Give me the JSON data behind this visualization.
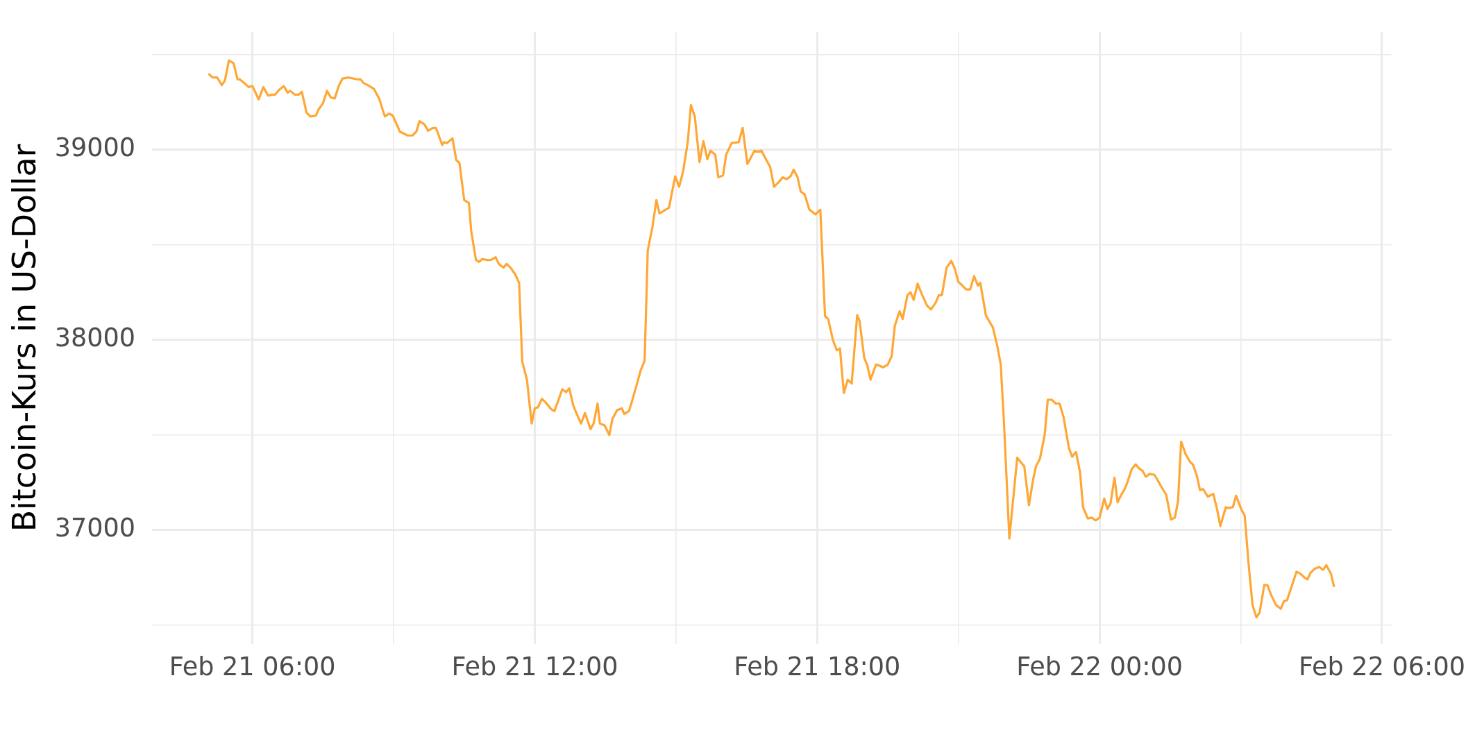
{
  "chart_data": {
    "type": "line",
    "ylabel": "Bitcoin-Kurs in US-Dollar",
    "color": "#ffa735",
    "grid": true,
    "xlim": [
      "--02-21T03:52",
      "--02-22T06:12"
    ],
    "xticks": [
      {
        "value": "--02-21T06:00",
        "label": "Feb 21 06:00"
      },
      {
        "value": "--02-21T09:00",
        "label": null
      },
      {
        "value": "--02-21T12:00",
        "label": "Feb 21 12:00"
      },
      {
        "value": "--02-21T15:00",
        "label": null
      },
      {
        "value": "--02-21T18:00",
        "label": "Feb 21 18:00"
      },
      {
        "value": "--02-21T21:00",
        "label": null
      },
      {
        "value": "--02-22T00:00",
        "label": "Feb 22 00:00"
      },
      {
        "value": "--02-22T03:00",
        "label": null
      },
      {
        "value": "--02-22T06:00",
        "label": "Feb 22 06:00"
      }
    ],
    "ylim": [
      36400,
      39620
    ],
    "yticks": [
      {
        "value": 36500,
        "label": null
      },
      37000,
      {
        "value": 37500,
        "label": null
      },
      38000,
      {
        "value": 38500,
        "label": null
      },
      39000,
      {
        "value": 39500,
        "label": null
      }
    ],
    "x": [
      "--02-21T05:04",
      "--02-21T05:09",
      "--02-21T05:15",
      "--02-21T05:21",
      "--02-21T05:25",
      "--02-21T05:30",
      "--02-21T05:36",
      "--02-21T05:41",
      "--02-21T05:44",
      "--02-21T05:50",
      "--02-21T05:55",
      "--02-21T06:00",
      "--02-21T06:08",
      "--02-21T06:14",
      "--02-21T06:20",
      "--02-21T06:25",
      "--02-21T06:29",
      "--02-21T06:34",
      "--02-21T06:40",
      "--02-21T06:45",
      "--02-21T06:48",
      "--02-21T06:54",
      "--02-21T06:59",
      "--02-21T07:03",
      "--02-21T07:09",
      "--02-21T07:14",
      "--02-21T07:21",
      "--02-21T07:24",
      "--02-21T07:30",
      "--02-21T07:35",
      "--02-21T07:40",
      "--02-21T07:45",
      "--02-21T07:50",
      "--02-21T07:55",
      "--02-21T08:03",
      "--02-21T08:14",
      "--02-21T08:18",
      "--02-21T08:22",
      "--02-21T08:27",
      "--02-21T08:35",
      "--02-21T08:42",
      "--02-21T08:46",
      "--02-21T08:49",
      "--02-21T08:54",
      "--02-21T08:59",
      "--02-21T09:08",
      "--02-21T09:18",
      "--02-21T09:24",
      "--02-21T09:29",
      "--02-21T09:33",
      "--02-21T09:39",
      "--02-21T09:44",
      "--02-21T09:50",
      "--02-21T09:54",
      "--02-21T10:02",
      "--02-21T10:04",
      "--02-21T10:08",
      "--02-21T10:15",
      "--02-21T10:20",
      "--02-21T10:24",
      "--02-21T10:30",
      "--02-21T10:36",
      "--02-21T10:39",
      "--02-21T10:45",
      "--02-21T10:49",
      "--02-21T10:53",
      "--02-21T10:59",
      "--02-21T11:04",
      "--02-21T11:10",
      "--02-21T11:14",
      "--02-21T11:20",
      "--02-21T11:24",
      "--02-21T11:29",
      "--02-21T11:35",
      "--02-21T11:40",
      "--02-21T11:44",
      "--02-21T11:50",
      "--02-21T11:56",
      "--02-21T12:00",
      "--02-21T12:04",
      "--02-21T12:09",
      "--02-21T12:14",
      "--02-21T12:21",
      "--02-21T12:25",
      "--02-21T12:35",
      "--02-21T12:40",
      "--02-21T12:44",
      "--02-21T12:49",
      "--02-21T12:54",
      "--02-21T12:59",
      "--02-21T13:04",
      "--02-21T13:11",
      "--02-21T13:15",
      "--02-21T13:20",
      "--02-21T13:23",
      "--02-21T13:29",
      "--02-21T13:35",
      "--02-21T13:39",
      "--02-21T13:45",
      "--02-21T13:51",
      "--02-21T13:54",
      "--02-21T14:00",
      "--02-21T14:03",
      "--02-21T14:10",
      "--02-21T14:15",
      "--02-21T14:20",
      "--02-21T14:24",
      "--02-21T14:30",
      "--02-21T14:35",
      "--02-21T14:39",
      "--02-21T14:45",
      "--02-21T14:51",
      "--02-21T14:59",
      "--02-21T15:04",
      "--02-21T15:09",
      "--02-21T15:15",
      "--02-21T15:19",
      "--02-21T15:24",
      "--02-21T15:30",
      "--02-21T15:35",
      "--02-21T15:40",
      "--02-21T15:44",
      "--02-21T15:50",
      "--02-21T15:54",
      "--02-21T16:00",
      "--02-21T16:04",
      "--02-21T16:11",
      "--02-21T16:20",
      "--02-21T16:25",
      "--02-21T16:31",
      "--02-21T16:33",
      "--02-21T16:40",
      "--02-21T16:44",
      "--02-21T16:49",
      "--02-21T16:56",
      "--02-21T17:00",
      "--02-21T17:05",
      "--02-21T17:11",
      "--02-21T17:16",
      "--02-21T17:21",
      "--02-21T17:26",
      "--02-21T17:30",
      "--02-21T17:35",
      "--02-21T17:39",
      "--02-21T17:44",
      "--02-21T17:50",
      "--02-21T17:58",
      "--02-21T18:04",
      "--02-21T18:10",
      "--02-21T18:14",
      "--02-21T18:20",
      "--02-21T18:25",
      "--02-21T18:29",
      "--02-21T18:34",
      "--02-21T18:39",
      "--02-21T18:44",
      "--02-21T18:51",
      "--02-21T18:54",
      "--02-21T19:00",
      "--02-21T19:04",
      "--02-21T19:08",
      "--02-21T19:15",
      "--02-21T19:19",
      "--02-21T19:24",
      "--02-21T19:30",
      "--02-21T19:35",
      "--02-21T19:39",
      "--02-21T19:45",
      "--02-21T19:49",
      "--02-21T19:55",
      "--02-21T19:59",
      "--02-21T20:03",
      "--02-21T20:08",
      "--02-21T20:14",
      "--02-21T20:20",
      "--02-21T20:25",
      "--02-21T20:31",
      "--02-21T20:35",
      "--02-21T20:39",
      "--02-21T20:45",
      "--02-21T20:51",
      "--02-21T20:55",
      "--02-21T21:00",
      "--02-21T21:04",
      "--02-21T21:10",
      "--02-21T21:15",
      "--02-21T21:20",
      "--02-21T21:25",
      "--02-21T21:28",
      "--02-21T21:35",
      "--02-21T21:39",
      "--02-21T21:44",
      "--02-21T21:50",
      "--02-21T21:54",
      "--02-21T21:58",
      "--02-21T22:05",
      "--02-21T22:09",
      "--02-21T22:15",
      "--02-21T22:20",
      "--02-21T22:24",
      "--02-21T22:30",
      "--02-21T22:35",
      "--02-21T22:39",
      "--02-21T22:44",
      "--02-21T22:50",
      "--02-21T22:54",
      "--02-21T22:59",
      "--02-21T23:04",
      "--02-21T23:09",
      "--02-21T23:14",
      "--02-21T23:21",
      "--02-21T23:25",
      "--02-21T23:30",
      "--02-21T23:35",
      "--02-21T23:39",
      "--02-21T23:45",
      "--02-21T23:50",
      "--02-21T23:55",
      "--02-22T00:00",
      "--02-22T00:06",
      "--02-22T00:10",
      "--02-22T00:14",
      "--02-22T00:19",
      "--02-22T00:23",
      "--02-22T00:27",
      "--02-22T00:32",
      "--02-22T00:35",
      "--02-22T00:41",
      "--02-22T00:46",
      "--02-22T00:50",
      "--02-22T00:55",
      "--02-22T00:59",
      "--02-22T01:04",
      "--02-22T01:10",
      "--02-22T01:15",
      "--02-22T01:19",
      "--02-22T01:25",
      "--02-22T01:31",
      "--02-22T01:36",
      "--02-22T01:40",
      "--02-22T01:44",
      "--02-22T01:50",
      "--02-22T01:56",
      "--02-22T01:59",
      "--02-22T02:04",
      "--02-22T02:08",
      "--02-22T02:12",
      "--02-22T02:18",
      "--02-22T02:25",
      "--02-22T02:30",
      "--02-22T02:34",
      "--02-22T02:41",
      "--02-22T02:44",
      "--02-22T02:50",
      "--02-22T02:54",
      "--02-22T03:01",
      "--02-22T03:05",
      "--02-22T03:10",
      "--02-22T03:15",
      "--02-22T03:20",
      "--02-22T03:24",
      "--02-22T03:30",
      "--02-22T03:34",
      "--02-22T03:39",
      "--02-22T03:45",
      "--02-22T03:51",
      "--02-22T03:55",
      "--02-22T03:59",
      "--02-22T04:05",
      "--02-22T04:11",
      "--02-22T04:16",
      "--02-22T04:21",
      "--02-22T04:25",
      "--02-22T04:29",
      "--02-22T04:34",
      "--02-22T04:40",
      "--02-22T04:45",
      "--02-22T04:49",
      "--02-22T04:55",
      "--02-22T04:59"
    ],
    "values": [
      39400,
      39380,
      39380,
      39340,
      39365,
      39470,
      39455,
      39370,
      39370,
      39350,
      39330,
      39335,
      39265,
      39330,
      39285,
      39290,
      39290,
      39315,
      39335,
      39300,
      39310,
      39290,
      39290,
      39305,
      39195,
      39175,
      39180,
      39210,
      39245,
      39310,
      39275,
      39270,
      39335,
      39375,
      39380,
      39370,
      39370,
      39350,
      39340,
      39320,
      39265,
      39210,
      39175,
      39190,
      39180,
      39095,
      39075,
      39075,
      39095,
      39150,
      39135,
      39100,
      39115,
      39115,
      39025,
      39040,
      39035,
      39060,
      38945,
      38930,
      38735,
      38720,
      38570,
      38420,
      38410,
      38425,
      38420,
      38420,
      38435,
      38400,
      38380,
      38400,
      38380,
      38345,
      38300,
      37885,
      37790,
      37560,
      37640,
      37645,
      37690,
      37670,
      37635,
      37625,
      37740,
      37725,
      37745,
      37655,
      37605,
      37560,
      37615,
      37530,
      37560,
      37665,
      37560,
      37550,
      37500,
      37585,
      37630,
      37640,
      37610,
      37625,
      37665,
      37765,
      37840,
      37890,
      38470,
      38595,
      38735,
      38665,
      38680,
      38695,
      38860,
      38805,
      38885,
      39040,
      39235,
      39175,
      38935,
      39045,
      38950,
      38995,
      38975,
      38855,
      38865,
      38975,
      39035,
      39040,
      39115,
      38925,
      38940,
      38995,
      38990,
      38995,
      38940,
      38910,
      38805,
      38830,
      38855,
      38845,
      38860,
      38895,
      38855,
      38780,
      38765,
      38685,
      38660,
      38685,
      38125,
      38110,
      38000,
      37945,
      37955,
      37720,
      37790,
      37770,
      38130,
      38100,
      37905,
      37865,
      37790,
      37870,
      37865,
      37855,
      37870,
      37915,
      38075,
      38150,
      38110,
      38235,
      38250,
      38210,
      38295,
      38235,
      38180,
      38160,
      38195,
      38235,
      38235,
      38380,
      38415,
      38380,
      38305,
      38290,
      38265,
      38265,
      38335,
      38285,
      38300,
      38130,
      38100,
      38065,
      37960,
      37870,
      37575,
      36955,
      37125,
      37380,
      37355,
      37335,
      37130,
      37260,
      37335,
      37375,
      37500,
      37685,
      37685,
      37665,
      37665,
      37595,
      37430,
      37385,
      37410,
      37305,
      37120,
      37060,
      37065,
      37050,
      37065,
      37165,
      37110,
      37140,
      37275,
      37145,
      37180,
      37215,
      37245,
      37320,
      37345,
      37325,
      37310,
      37280,
      37295,
      37290,
      37255,
      37225,
      37185,
      37055,
      37065,
      37150,
      37465,
      37395,
      37355,
      37345,
      37285,
      37210,
      37215,
      37175,
      37190,
      37105,
      37020,
      37120,
      37115,
      37120,
      37180,
      37105,
      37075,
      36820,
      36605,
      36540,
      36565,
      36710,
      36710,
      36655,
      36605,
      36585,
      36625,
      36630,
      36705,
      36780,
      36770,
      36750,
      36740,
      36775,
      36795,
      36805,
      36790,
      36815,
      36770,
      36700
    ]
  }
}
